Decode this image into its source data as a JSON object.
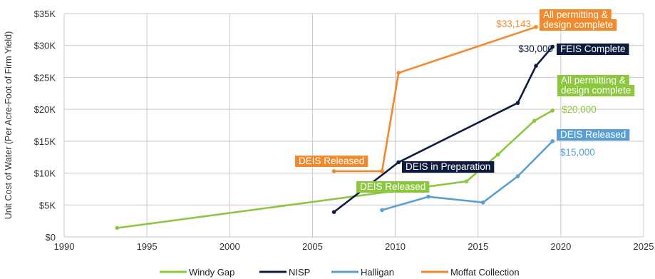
{
  "chart_data": {
    "type": "line",
    "title": "",
    "xlabel": "",
    "ylabel": "Unit Cost of Water (Per Acre-Foot of Firm Yield)",
    "xlim": [
      1990,
      2025
    ],
    "ylim": [
      0,
      35000
    ],
    "x_ticks": [
      1990,
      1995,
      2000,
      2005,
      2010,
      2015,
      2020,
      2025
    ],
    "x_tick_labels": [
      "1990",
      "1995",
      "2000",
      "2005",
      "2010",
      "2015",
      "2020",
      "2025"
    ],
    "y_ticks": [
      0,
      5000,
      10000,
      15000,
      20000,
      25000,
      30000,
      35000
    ],
    "y_tick_labels": [
      "$0",
      "$5K",
      "$10K",
      "$15K",
      "$20K",
      "$25K",
      "$30K",
      "$35K"
    ],
    "grid": true,
    "legend_position": "bottom",
    "series": [
      {
        "name": "Windy Gap",
        "color": "#8dc63f",
        "points": [
          [
            1993.2,
            1400
          ],
          [
            2014.3,
            8700
          ],
          [
            2016.2,
            12900
          ],
          [
            2018.4,
            18200
          ],
          [
            2019.5,
            19800
          ]
        ]
      },
      {
        "name": "NISP",
        "color": "#0d1b3e",
        "points": [
          [
            2006.3,
            3900
          ],
          [
            2010.2,
            11700
          ],
          [
            2017.4,
            21000
          ],
          [
            2018.5,
            26800
          ],
          [
            2019.5,
            29800
          ]
        ]
      },
      {
        "name": "Halligan",
        "color": "#5a9fd4",
        "points": [
          [
            2009.2,
            4200
          ],
          [
            2012.0,
            6300
          ],
          [
            2015.3,
            5400
          ],
          [
            2017.4,
            9500
          ],
          [
            2019.5,
            15000
          ]
        ]
      },
      {
        "name": "Moffat Collection",
        "color": "#f08a2c",
        "points": [
          [
            2006.3,
            10300
          ],
          [
            2009.2,
            10300
          ],
          [
            2010.2,
            25700
          ],
          [
            2018.5,
            32900
          ]
        ]
      }
    ],
    "annotations": [
      {
        "text": "$33,143",
        "color": "#f08a2c",
        "style": "text"
      },
      {
        "text": "All permitting &",
        "color": "#f08a2c",
        "style": "box"
      },
      {
        "text": "design complete",
        "color": "#f08a2c",
        "style": "box"
      },
      {
        "text": "$30,000",
        "color": "#0d1b3e",
        "style": "text"
      },
      {
        "text": "FEIS Complete",
        "color": "#0d1b3e",
        "style": "box"
      },
      {
        "text": "All permitting &",
        "color": "#8dc63f",
        "style": "box"
      },
      {
        "text": "design complete",
        "color": "#8dc63f",
        "style": "box"
      },
      {
        "text": "$20,000",
        "color": "#8dc63f",
        "style": "text"
      },
      {
        "text": "DEIS Released",
        "color": "#5a9fd4",
        "style": "box"
      },
      {
        "text": "$15,000",
        "color": "#5a9fd4",
        "style": "text"
      },
      {
        "text": "DEIS Released",
        "color": "#f08a2c",
        "style": "box"
      },
      {
        "text": "DEIS in Preparation",
        "color": "#0d1b3e",
        "style": "box"
      },
      {
        "text": "DEIS Released",
        "color": "#8dc63f",
        "style": "box"
      }
    ]
  }
}
